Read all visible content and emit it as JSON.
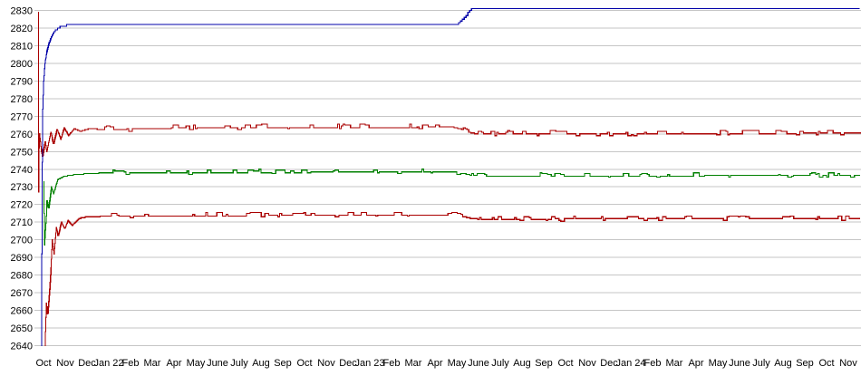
{
  "page": {
    "background": "#ffffff"
  },
  "chart_data": {
    "type": "line",
    "title": "",
    "legend": "none",
    "grid": true,
    "background": "#ffffff",
    "grid_color": "#c6c6c6",
    "text_color": "#000000",
    "y_axis": {
      "min": 2640,
      "max": 2830,
      "step": 10,
      "tick_labels": [
        "2830",
        "2820",
        "2810",
        "2800",
        "2790",
        "2780",
        "2770",
        "2760",
        "2750",
        "2740",
        "2730",
        "2720",
        "2710",
        "2700",
        "2690",
        "2680",
        "2670",
        "2660",
        "2650",
        "2640"
      ]
    },
    "x_axis": {
      "unit": "month",
      "tick_labels": [
        "Oct",
        "Nov",
        "Dec",
        "Jan 22",
        "Feb",
        "Mar",
        "Apr",
        "May",
        "June",
        "July",
        "Aug",
        "Sep",
        "Oct",
        "Nov",
        "Dec",
        "Jan 23",
        "Feb",
        "Mar",
        "Apr",
        "May",
        "June",
        "July",
        "Aug",
        "Sep",
        "Oct",
        "Nov",
        "Dec",
        "Jan 24",
        "Feb",
        "Mar",
        "Apr",
        "May",
        "June",
        "July",
        "Aug",
        "Sep",
        "Oct",
        "Nov"
      ]
    },
    "series": [
      {
        "name": "series-red-upper",
        "color": "#aa0000",
        "quantize": 0.5,
        "noise_amp": 1.4,
        "noise_from": 2.8,
        "dense_until": 2.8,
        "seed": 911,
        "points": [
          [
            -0.25,
            2829
          ],
          [
            -0.24,
            2706
          ],
          [
            -0.22,
            2748
          ],
          [
            -0.19,
            2760
          ],
          [
            -0.12,
            2752
          ],
          [
            -0.04,
            2747
          ],
          [
            0.08,
            2756
          ],
          [
            0.15,
            2750
          ],
          [
            0.33,
            2761
          ],
          [
            0.46,
            2754
          ],
          [
            0.62,
            2763
          ],
          [
            0.79,
            2757
          ],
          [
            0.95,
            2763.5
          ],
          [
            1.15,
            2759
          ],
          [
            1.4,
            2763
          ],
          [
            1.7,
            2761.5
          ],
          [
            2.1,
            2763
          ],
          [
            2.8,
            2762.5
          ],
          [
            6,
            2763.3
          ],
          [
            12,
            2763.6
          ],
          [
            18.85,
            2763.8
          ],
          [
            19.05,
            2763.2
          ],
          [
            19.25,
            2762.3
          ],
          [
            19.45,
            2761.3
          ],
          [
            19.65,
            2760.5
          ],
          [
            19.9,
            2760
          ],
          [
            26,
            2760
          ],
          [
            32,
            2760.2
          ],
          [
            37.58,
            2760.3
          ]
        ]
      },
      {
        "name": "series-green",
        "color": "#008000",
        "quantize": 0.5,
        "noise_amp": 1.2,
        "noise_from": 2.6,
        "dense_until": 2.6,
        "seed": 421,
        "points": [
          [
            0.0,
            2733
          ],
          [
            0.04,
            2697
          ],
          [
            0.16,
            2722
          ],
          [
            0.24,
            2718
          ],
          [
            0.36,
            2730
          ],
          [
            0.46,
            2726
          ],
          [
            0.64,
            2734
          ],
          [
            0.96,
            2736
          ],
          [
            1.5,
            2737
          ],
          [
            2.6,
            2737.8
          ],
          [
            10,
            2738.2
          ],
          [
            18.85,
            2738.4
          ],
          [
            19.15,
            2737.8
          ],
          [
            19.45,
            2737
          ],
          [
            19.75,
            2736.4
          ],
          [
            20,
            2736.1
          ],
          [
            28,
            2736.2
          ],
          [
            37.58,
            2736.4
          ]
        ]
      },
      {
        "name": "series-red-lower",
        "color": "#aa0000",
        "quantize": 0.5,
        "noise_amp": 1.3,
        "noise_from": 2.7,
        "dense_until": 2.7,
        "seed": 137,
        "points": [
          [
            0.06,
            2640
          ],
          [
            0.12,
            2664
          ],
          [
            0.19,
            2657
          ],
          [
            0.27,
            2670
          ],
          [
            0.35,
            2686
          ],
          [
            0.4,
            2700
          ],
          [
            0.48,
            2692
          ],
          [
            0.58,
            2707
          ],
          [
            0.67,
            2702
          ],
          [
            0.82,
            2710
          ],
          [
            0.97,
            2706
          ],
          [
            1.12,
            2711
          ],
          [
            1.32,
            2708
          ],
          [
            1.62,
            2712
          ],
          [
            2.02,
            2713
          ],
          [
            2.7,
            2713.3
          ],
          [
            10,
            2713.8
          ],
          [
            18.85,
            2714
          ],
          [
            19.1,
            2713.5
          ],
          [
            19.4,
            2712.7
          ],
          [
            19.7,
            2712
          ],
          [
            19.95,
            2711.7
          ],
          [
            27,
            2711.8
          ],
          [
            37.58,
            2712
          ]
        ]
      },
      {
        "name": "series-blue",
        "color": "#0000a8",
        "quantize": 1,
        "noise_amp": 0,
        "noise_from": 99,
        "dense_until": 2.0,
        "seed": 7,
        "points": [
          [
            -0.1,
            2640
          ],
          [
            -0.05,
            2770
          ],
          [
            0.0,
            2790
          ],
          [
            0.06,
            2800
          ],
          [
            0.15,
            2807
          ],
          [
            0.27,
            2812
          ],
          [
            0.4,
            2816
          ],
          [
            0.56,
            2819
          ],
          [
            0.75,
            2820.5
          ],
          [
            1.05,
            2821.5
          ],
          [
            2.0,
            2821.7
          ],
          [
            18.95,
            2821.7
          ],
          [
            19.08,
            2822.5
          ],
          [
            19.22,
            2824.5
          ],
          [
            19.36,
            2826.5
          ],
          [
            19.5,
            2828.5
          ],
          [
            19.64,
            2830.3
          ],
          [
            19.8,
            2831.2
          ],
          [
            37.58,
            2831.2
          ]
        ]
      }
    ]
  }
}
